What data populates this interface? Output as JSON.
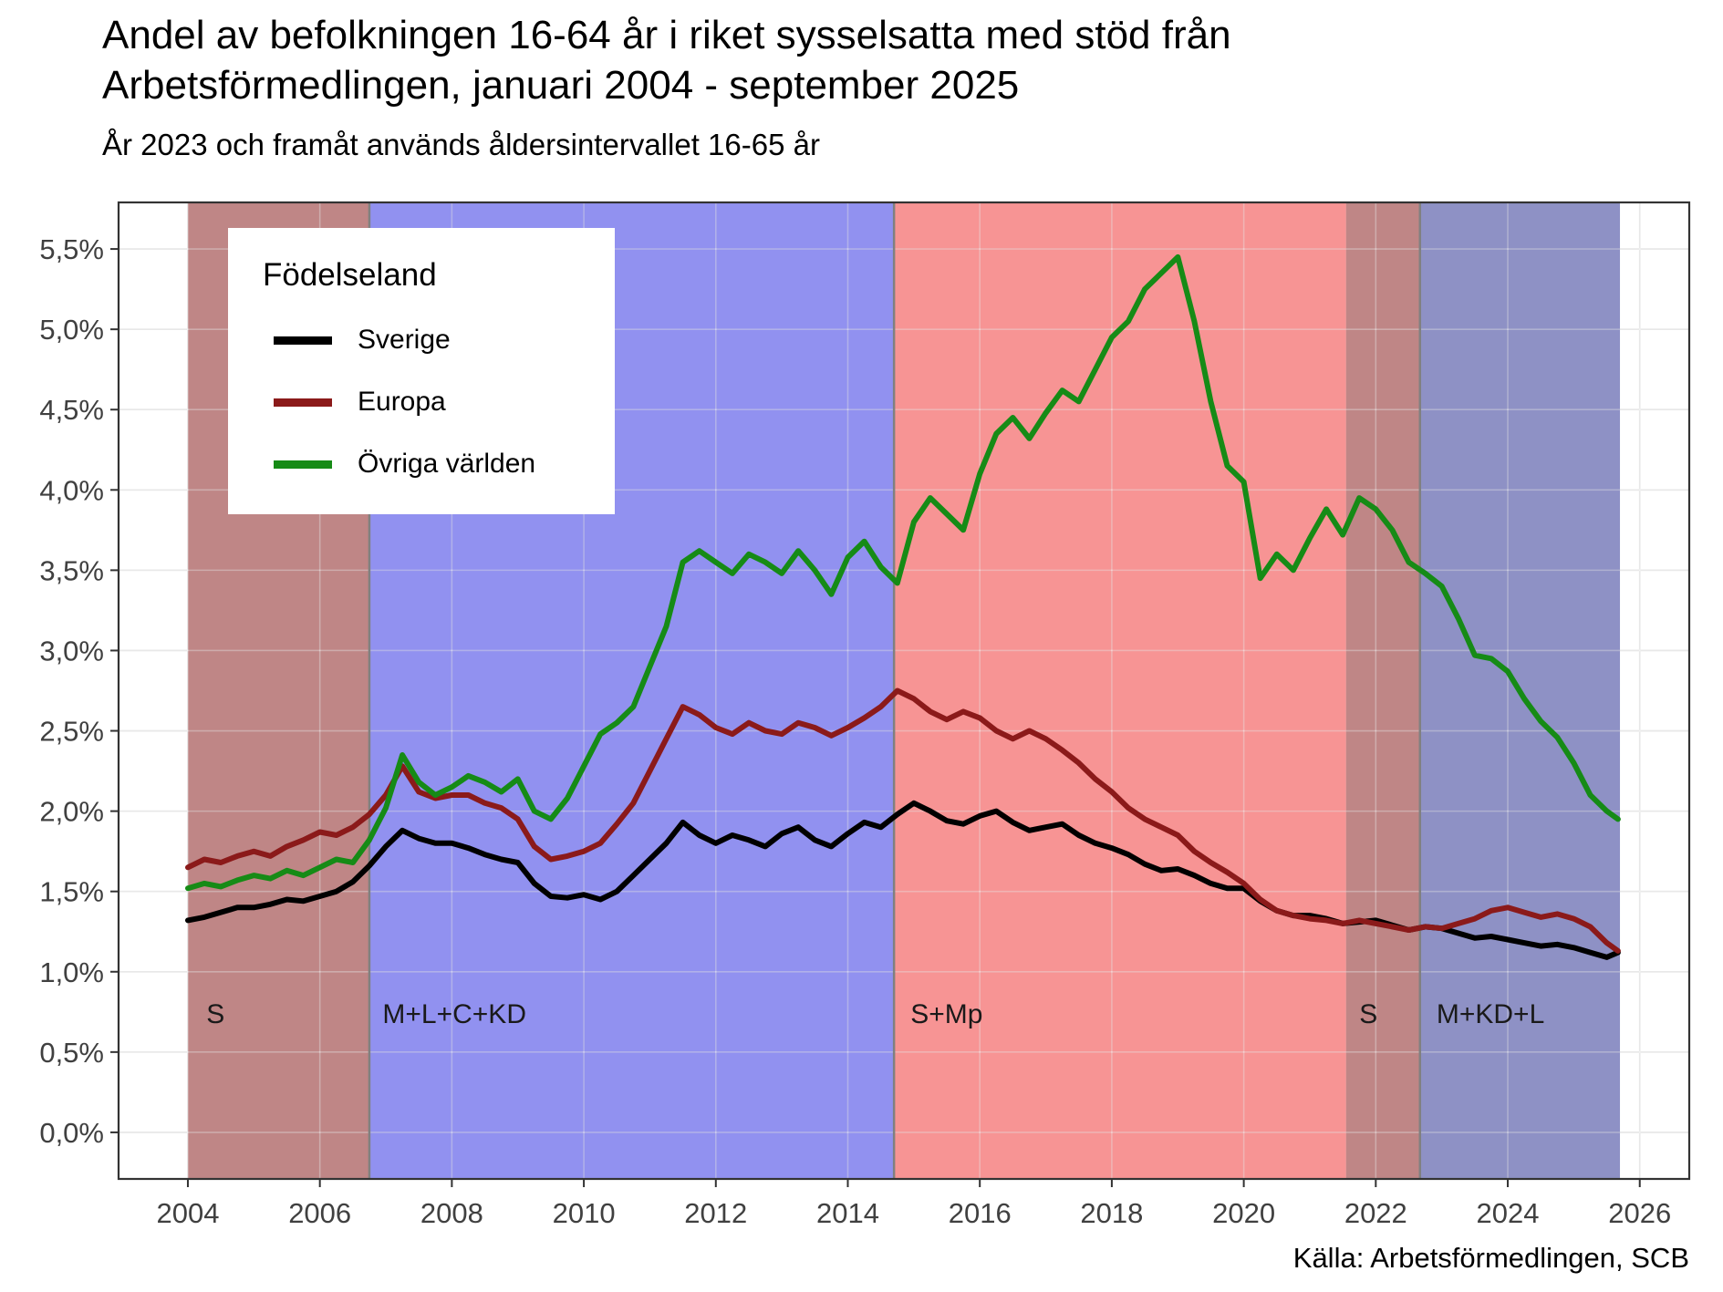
{
  "title": "Andel av befolkningen 16-64 år i riket sysselsatta med stöd från Arbetsförmedlingen, januari 2004 - september 2025",
  "subtitle": "År 2023 och framåt används åldersintervallet 16-65 år",
  "caption": "Källa: Arbetsförmedlingen, SCB",
  "legend": {
    "title": "Födelseland",
    "items": [
      {
        "label": "Sverige",
        "color": "#000000"
      },
      {
        "label": "Europa",
        "color": "#8B1A1A"
      },
      {
        "label": "Övriga världen",
        "color": "#168B16"
      }
    ]
  },
  "chart_data": {
    "type": "line",
    "title": "Andel av befolkningen 16-64 år i riket sysselsatta med stöd från Arbetsförmedlingen, januari 2004 - september 2025",
    "subtitle": "År 2023 och framåt används åldersintervallet 16-65 år",
    "xlabel": "",
    "ylabel": "",
    "grid": true,
    "legend_position": "top-left-inside",
    "ylim": [
      0.0,
      5.5
    ],
    "yticks": [
      0.0,
      0.5,
      1.0,
      1.5,
      2.0,
      2.5,
      3.0,
      3.5,
      4.0,
      4.5,
      5.0,
      5.5
    ],
    "ytick_labels": [
      "0,0%",
      "0,5%",
      "1,0%",
      "1,5%",
      "2,0%",
      "2,5%",
      "3,0%",
      "3,5%",
      "4,0%",
      "4,5%",
      "5,0%",
      "5,5%"
    ],
    "xticks": [
      2004,
      2006,
      2008,
      2010,
      2012,
      2014,
      2016,
      2018,
      2020,
      2022,
      2024,
      2026
    ],
    "x_unit": "decimal year (quarterly samples of the monthly series Jan 2004 - Sep 2025)",
    "x": [
      2004,
      2004.25,
      2004.5,
      2004.75,
      2005,
      2005.25,
      2005.5,
      2005.75,
      2006,
      2006.25,
      2006.5,
      2006.75,
      2007,
      2007.25,
      2007.5,
      2007.75,
      2008,
      2008.25,
      2008.5,
      2008.75,
      2009,
      2009.25,
      2009.5,
      2009.75,
      2010,
      2010.25,
      2010.5,
      2010.75,
      2011,
      2011.25,
      2011.5,
      2011.75,
      2012,
      2012.25,
      2012.5,
      2012.75,
      2013,
      2013.25,
      2013.5,
      2013.75,
      2014,
      2014.25,
      2014.5,
      2014.75,
      2015,
      2015.25,
      2015.5,
      2015.75,
      2016,
      2016.25,
      2016.5,
      2016.75,
      2017,
      2017.25,
      2017.5,
      2017.75,
      2018,
      2018.25,
      2018.5,
      2018.75,
      2019,
      2019.25,
      2019.5,
      2019.75,
      2020,
      2020.25,
      2020.5,
      2020.75,
      2021,
      2021.25,
      2021.5,
      2021.75,
      2022,
      2022.25,
      2022.5,
      2022.75,
      2023,
      2023.25,
      2023.5,
      2023.75,
      2024,
      2024.25,
      2024.5,
      2024.75,
      2025,
      2025.25,
      2025.5,
      2025.67
    ],
    "series": [
      {
        "name": "Sverige",
        "color": "#000000",
        "values": [
          1.32,
          1.34,
          1.37,
          1.4,
          1.4,
          1.42,
          1.45,
          1.44,
          1.47,
          1.5,
          1.56,
          1.66,
          1.78,
          1.88,
          1.83,
          1.8,
          1.8,
          1.77,
          1.73,
          1.7,
          1.68,
          1.55,
          1.47,
          1.46,
          1.48,
          1.45,
          1.5,
          1.6,
          1.7,
          1.8,
          1.93,
          1.85,
          1.8,
          1.85,
          1.82,
          1.78,
          1.86,
          1.9,
          1.82,
          1.78,
          1.86,
          1.93,
          1.9,
          1.98,
          2.05,
          2.0,
          1.94,
          1.92,
          1.97,
          2.0,
          1.93,
          1.88,
          1.9,
          1.92,
          1.85,
          1.8,
          1.77,
          1.73,
          1.67,
          1.63,
          1.64,
          1.6,
          1.55,
          1.52,
          1.52,
          1.44,
          1.38,
          1.35,
          1.35,
          1.33,
          1.3,
          1.31,
          1.32,
          1.29,
          1.26,
          1.28,
          1.27,
          1.24,
          1.21,
          1.22,
          1.2,
          1.18,
          1.16,
          1.17,
          1.15,
          1.12,
          1.09,
          1.12
        ]
      },
      {
        "name": "Europa",
        "color": "#8B1A1A",
        "values": [
          1.65,
          1.7,
          1.68,
          1.72,
          1.75,
          1.72,
          1.78,
          1.82,
          1.87,
          1.85,
          1.9,
          1.98,
          2.1,
          2.28,
          2.12,
          2.08,
          2.1,
          2.1,
          2.05,
          2.02,
          1.95,
          1.78,
          1.7,
          1.72,
          1.75,
          1.8,
          1.92,
          2.05,
          2.25,
          2.45,
          2.65,
          2.6,
          2.52,
          2.48,
          2.55,
          2.5,
          2.48,
          2.55,
          2.52,
          2.47,
          2.52,
          2.58,
          2.65,
          2.75,
          2.7,
          2.62,
          2.57,
          2.62,
          2.58,
          2.5,
          2.45,
          2.5,
          2.45,
          2.38,
          2.3,
          2.2,
          2.12,
          2.02,
          1.95,
          1.9,
          1.85,
          1.75,
          1.68,
          1.62,
          1.55,
          1.45,
          1.38,
          1.35,
          1.33,
          1.32,
          1.3,
          1.32,
          1.3,
          1.28,
          1.26,
          1.28,
          1.27,
          1.3,
          1.33,
          1.38,
          1.4,
          1.37,
          1.34,
          1.36,
          1.33,
          1.28,
          1.18,
          1.13
        ]
      },
      {
        "name": "Övriga världen",
        "color": "#168B16",
        "values": [
          1.52,
          1.55,
          1.53,
          1.57,
          1.6,
          1.58,
          1.63,
          1.6,
          1.65,
          1.7,
          1.68,
          1.82,
          2.02,
          2.35,
          2.18,
          2.1,
          2.15,
          2.22,
          2.18,
          2.12,
          2.2,
          2.0,
          1.95,
          2.08,
          2.28,
          2.48,
          2.55,
          2.65,
          2.9,
          3.15,
          3.55,
          3.62,
          3.55,
          3.48,
          3.6,
          3.55,
          3.48,
          3.62,
          3.5,
          3.35,
          3.58,
          3.68,
          3.52,
          3.42,
          3.8,
          3.95,
          3.85,
          3.75,
          4.1,
          4.35,
          4.45,
          4.32,
          4.48,
          4.62,
          4.55,
          4.75,
          4.95,
          5.05,
          5.25,
          5.35,
          5.45,
          5.05,
          4.55,
          4.15,
          4.05,
          3.45,
          3.6,
          3.5,
          3.7,
          3.88,
          3.72,
          3.95,
          3.88,
          3.75,
          3.55,
          3.48,
          3.4,
          3.2,
          2.97,
          2.95,
          2.87,
          2.7,
          2.56,
          2.46,
          2.3,
          2.1,
          2.0,
          1.95
        ]
      }
    ],
    "background_periods": [
      {
        "label": "S",
        "start": 2004.0,
        "end": 2006.75,
        "color": "rgba(139,35,35,0.55)"
      },
      {
        "label": "M+L+C+KD",
        "start": 2006.75,
        "end": 2014.7,
        "color": "rgba(35,35,225,0.5)"
      },
      {
        "label": "S+Mp",
        "start": 2014.7,
        "end": 2021.55,
        "color": "rgba(240,60,60,0.55)"
      },
      {
        "label": "S",
        "start": 2021.55,
        "end": 2022.67,
        "color": "rgba(139,35,35,0.55)"
      },
      {
        "label": "M+KD+L",
        "start": 2022.67,
        "end": 2025.7,
        "color": "rgba(30,35,140,0.5)"
      }
    ],
    "annotations": [
      {
        "label": "S",
        "x": 2004.28,
        "y": 0.68,
        "anchor": "start"
      },
      {
        "label": "M+L+C+KD",
        "x": 2006.95,
        "y": 0.68,
        "anchor": "start"
      },
      {
        "label": "S+Mp",
        "x": 2014.95,
        "y": 0.68,
        "anchor": "start"
      },
      {
        "label": "S",
        "x": 2021.75,
        "y": 0.68,
        "anchor": "start"
      },
      {
        "label": "M+KD+L",
        "x": 2022.92,
        "y": 0.68,
        "anchor": "start"
      }
    ],
    "election_lines": [
      2006.75,
      2014.7,
      2022.67
    ]
  }
}
